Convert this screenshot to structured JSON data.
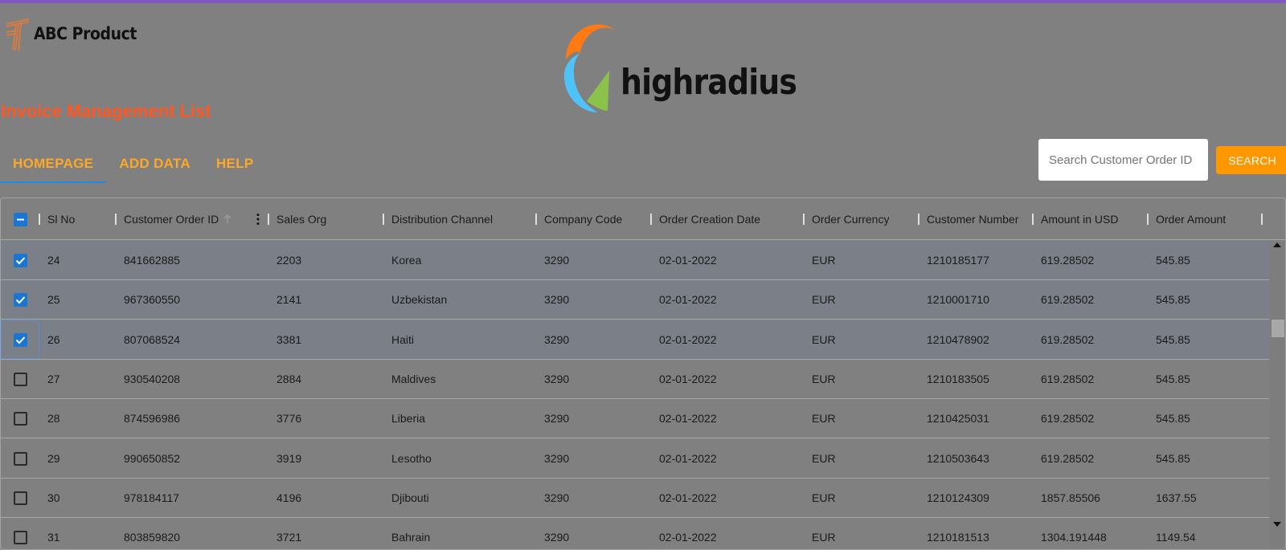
{
  "branding": {
    "app_name": "ABC Product",
    "partner_name": "highradius"
  },
  "page": {
    "title": "Invoice Management List"
  },
  "tabs": [
    {
      "label": "HOMEPAGE",
      "active": true
    },
    {
      "label": "ADD DATA",
      "active": false
    },
    {
      "label": "HELP",
      "active": false
    }
  ],
  "search": {
    "placeholder": "Search Customer Order ID",
    "value": "",
    "button_label": "SEARCH"
  },
  "colors": {
    "accent_purple": "#7e57c2",
    "title_orange": "#ff5722",
    "tab_orange": "#ffa726",
    "button_orange": "#ff9800",
    "checkbox_blue": "#1976d2"
  },
  "table": {
    "select_all_state": "indeterminate",
    "sorted_column": "Customer Order ID",
    "sort_direction": "ascending",
    "columns": [
      "Sl No",
      "Customer Order ID",
      "Sales Org",
      "Distribution Channel",
      "Company Code",
      "Order Creation Date",
      "Order Currency",
      "Customer Number",
      "Amount in USD",
      "Order Amount"
    ],
    "rows": [
      {
        "checked": true,
        "cells": [
          "24",
          "841662885",
          "2203",
          "Korea",
          "3290",
          "02-01-2022",
          "EUR",
          "1210185177",
          "619.28502",
          "545.85"
        ]
      },
      {
        "checked": true,
        "cells": [
          "25",
          "967360550",
          "2141",
          "Uzbekistan",
          "3290",
          "02-01-2022",
          "EUR",
          "1210001710",
          "619.28502",
          "545.85"
        ]
      },
      {
        "checked": true,
        "cells": [
          "26",
          "807068524",
          "3381",
          "Haiti",
          "3290",
          "02-01-2022",
          "EUR",
          "1210478902",
          "619.28502",
          "545.85"
        ]
      },
      {
        "checked": false,
        "cells": [
          "27",
          "930540208",
          "2884",
          "Maldives",
          "3290",
          "02-01-2022",
          "EUR",
          "1210183505",
          "619.28502",
          "545.85"
        ]
      },
      {
        "checked": false,
        "cells": [
          "28",
          "874596986",
          "3776",
          "Liberia",
          "3290",
          "02-01-2022",
          "EUR",
          "1210425031",
          "619.28502",
          "545.85"
        ]
      },
      {
        "checked": false,
        "cells": [
          "29",
          "990650852",
          "3919",
          "Lesotho",
          "3290",
          "02-01-2022",
          "EUR",
          "1210503643",
          "619.28502",
          "545.85"
        ]
      },
      {
        "checked": false,
        "cells": [
          "30",
          "978184117",
          "4196",
          "Djibouti",
          "3290",
          "02-01-2022",
          "EUR",
          "1210124309",
          "1857.85506",
          "1637.55"
        ]
      },
      {
        "checked": false,
        "cells": [
          "31",
          "803859820",
          "3721",
          "Bahrain",
          "3290",
          "02-01-2022",
          "EUR",
          "1210181513",
          "1304.191448",
          "1149.54"
        ]
      }
    ]
  },
  "icons": {
    "abc_logo": "abc-logo-icon",
    "highradius_logo": "highradius-logo-icon",
    "sort": "arrow-up-icon",
    "column_menu": "vertical-dots-icon",
    "checkbox_checked": "checkmark-icon",
    "checkbox_indeterminate": "minus-icon"
  }
}
